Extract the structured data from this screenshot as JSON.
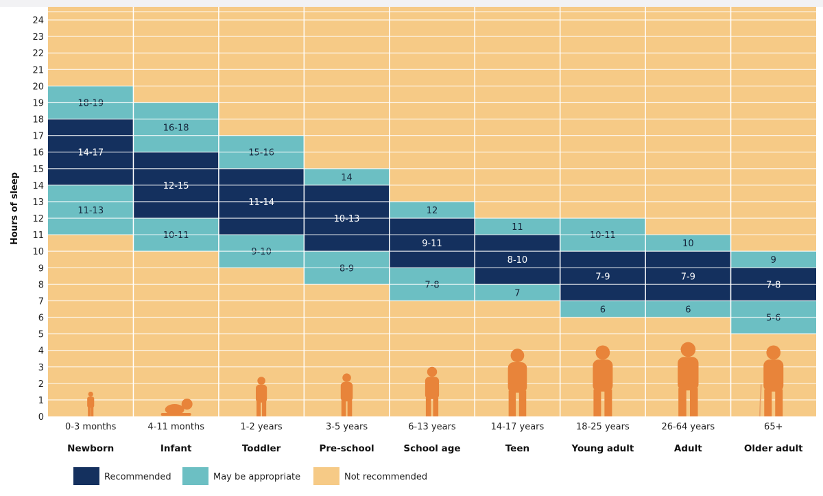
{
  "chart_data": {
    "type": "bar",
    "ylabel": "Hours of sleep",
    "ylim": [
      0,
      24
    ],
    "yticks": [
      0,
      1,
      2,
      3,
      4,
      5,
      6,
      7,
      8,
      9,
      10,
      11,
      12,
      13,
      14,
      15,
      16,
      17,
      18,
      19,
      20,
      21,
      22,
      23,
      24
    ],
    "grid": true,
    "legend_position": "bottom-left",
    "colors": {
      "recommended": "#14305e",
      "may_be_appropriate": "#6cbfc3",
      "not_recommended": "#f6ca86",
      "silhouette": "#e8843a"
    },
    "legend": [
      {
        "key": "recommended",
        "label": "Recommended"
      },
      {
        "key": "may_be_appropriate",
        "label": "May be appropriate"
      },
      {
        "key": "not_recommended",
        "label": "Not recommended"
      }
    ],
    "groups": [
      {
        "name": "Newborn",
        "age": "0-3 months",
        "figure": "baby-icon",
        "bands": [
          {
            "kind": "may_be_appropriate",
            "lo": 11,
            "hi": 13,
            "label": "11-13"
          },
          {
            "kind": "recommended",
            "lo": 14,
            "hi": 17,
            "label": "14-17"
          },
          {
            "kind": "may_be_appropriate",
            "lo": 18,
            "hi": 19,
            "label": "18-19"
          }
        ]
      },
      {
        "name": "Infant",
        "age": "4-11 months",
        "figure": "crawling-baby-icon",
        "bands": [
          {
            "kind": "may_be_appropriate",
            "lo": 10,
            "hi": 11,
            "label": "10-11"
          },
          {
            "kind": "recommended",
            "lo": 12,
            "hi": 15,
            "label": "12-15"
          },
          {
            "kind": "may_be_appropriate",
            "lo": 16,
            "hi": 18,
            "label": "16-18"
          }
        ]
      },
      {
        "name": "Toddler",
        "age": "1-2 years",
        "figure": "toddler-icon",
        "bands": [
          {
            "kind": "may_be_appropriate",
            "lo": 9,
            "hi": 10,
            "label": "9-10"
          },
          {
            "kind": "recommended",
            "lo": 11,
            "hi": 14,
            "label": "11-14"
          },
          {
            "kind": "may_be_appropriate",
            "lo": 15,
            "hi": 16,
            "label": "15-16"
          }
        ]
      },
      {
        "name": "Pre-school",
        "age": "3-5 years",
        "figure": "preschooler-icon",
        "bands": [
          {
            "kind": "may_be_appropriate",
            "lo": 8,
            "hi": 9,
            "label": "8-9"
          },
          {
            "kind": "recommended",
            "lo": 10,
            "hi": 13,
            "label": "10-13"
          },
          {
            "kind": "may_be_appropriate",
            "lo": 14,
            "hi": 14,
            "label": "14"
          }
        ]
      },
      {
        "name": "School age",
        "age": "6-13 years",
        "figure": "child-icon",
        "bands": [
          {
            "kind": "may_be_appropriate",
            "lo": 7,
            "hi": 8,
            "label": "7-8"
          },
          {
            "kind": "recommended",
            "lo": 9,
            "hi": 11,
            "label": "9-11"
          },
          {
            "kind": "may_be_appropriate",
            "lo": 12,
            "hi": 12,
            "label": "12"
          }
        ]
      },
      {
        "name": "Teen",
        "age": "14-17 years",
        "figure": "teen-icon",
        "bands": [
          {
            "kind": "may_be_appropriate",
            "lo": 7,
            "hi": 7,
            "label": "7"
          },
          {
            "kind": "recommended",
            "lo": 8,
            "hi": 10,
            "label": "8-10"
          },
          {
            "kind": "may_be_appropriate",
            "lo": 11,
            "hi": 11,
            "label": "11"
          }
        ]
      },
      {
        "name": "Young adult",
        "age": "18-25 years",
        "figure": "young-adult-icon",
        "bands": [
          {
            "kind": "may_be_appropriate",
            "lo": 6,
            "hi": 6,
            "label": "6"
          },
          {
            "kind": "recommended",
            "lo": 7,
            "hi": 9,
            "label": "7-9"
          },
          {
            "kind": "may_be_appropriate",
            "lo": 10,
            "hi": 11,
            "label": "10-11"
          }
        ]
      },
      {
        "name": "Adult",
        "age": "26-64 years",
        "figure": "adult-icon",
        "bands": [
          {
            "kind": "may_be_appropriate",
            "lo": 6,
            "hi": 6,
            "label": "6"
          },
          {
            "kind": "recommended",
            "lo": 7,
            "hi": 9,
            "label": "7-9"
          },
          {
            "kind": "may_be_appropriate",
            "lo": 10,
            "hi": 10,
            "label": "10"
          }
        ]
      },
      {
        "name": "Older adult",
        "age": "65+",
        "figure": "older-adult-icon",
        "bands": [
          {
            "kind": "may_be_appropriate",
            "lo": 5,
            "hi": 6,
            "label": "5-6"
          },
          {
            "kind": "recommended",
            "lo": 7,
            "hi": 8,
            "label": "7-8"
          },
          {
            "kind": "may_be_appropriate",
            "lo": 9,
            "hi": 9,
            "label": "9"
          }
        ]
      }
    ]
  }
}
